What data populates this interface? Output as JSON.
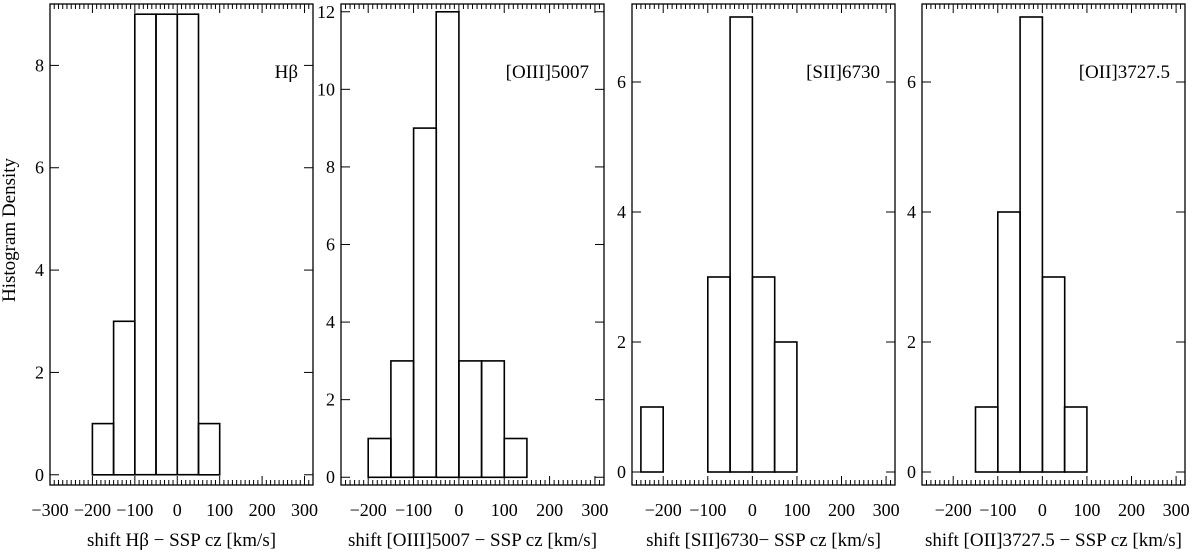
{
  "figure": {
    "ylabel": "Histogram Density"
  },
  "chart_data": [
    {
      "type": "bar",
      "annotation": "Hβ",
      "xlabel": "shift Hβ − SSP cz [km/s]",
      "xlim": [
        -300,
        320
      ],
      "xticks": [
        -300,
        -200,
        -100,
        0,
        100,
        200,
        300
      ],
      "xtick_labels": [
        "−300",
        "−200",
        "−100",
        "0",
        "100",
        "200",
        "300"
      ],
      "ylim": [
        -0.2,
        9.2
      ],
      "yticks": [
        0,
        2,
        4,
        6,
        8
      ],
      "bins": [
        {
          "x0": -200,
          "x1": -150,
          "value": 1
        },
        {
          "x0": -150,
          "x1": -100,
          "value": 3
        },
        {
          "x0": -100,
          "x1": -50,
          "value": 9
        },
        {
          "x0": -50,
          "x1": 0,
          "value": 9
        },
        {
          "x0": 0,
          "x1": 50,
          "value": 9
        },
        {
          "x0": 50,
          "x1": 100,
          "value": 1
        }
      ]
    },
    {
      "type": "bar",
      "annotation": "[OIII]5007",
      "xlabel": "shift [OIII]5007 − SSP cz [km/s]",
      "xlim": [
        -260,
        320
      ],
      "xticks": [
        -200,
        -100,
        0,
        100,
        200,
        300
      ],
      "xtick_labels": [
        "−200",
        "−100",
        "0",
        "100",
        "200",
        "300"
      ],
      "ylim": [
        -0.2,
        12.2
      ],
      "yticks": [
        0,
        2,
        4,
        6,
        8,
        10,
        12
      ],
      "bins": [
        {
          "x0": -200,
          "x1": -150,
          "value": 1
        },
        {
          "x0": -150,
          "x1": -100,
          "value": 3
        },
        {
          "x0": -100,
          "x1": -50,
          "value": 9
        },
        {
          "x0": -50,
          "x1": 0,
          "value": 12
        },
        {
          "x0": 0,
          "x1": 50,
          "value": 3
        },
        {
          "x0": 50,
          "x1": 100,
          "value": 3
        },
        {
          "x0": 100,
          "x1": 150,
          "value": 1
        }
      ]
    },
    {
      "type": "bar",
      "annotation": "[SII]6730",
      "xlabel": "shift [SII]6730− SSP cz [km/s]",
      "xlim": [
        -270,
        320
      ],
      "xticks": [
        -200,
        -100,
        0,
        100,
        200,
        300
      ],
      "xtick_labels": [
        "−200",
        "−100",
        "0",
        "100",
        "200",
        "300"
      ],
      "ylim": [
        -0.2,
        7.2
      ],
      "yticks": [
        0,
        2,
        4,
        6
      ],
      "bins": [
        {
          "x0": -250,
          "x1": -200,
          "value": 1
        },
        {
          "x0": -100,
          "x1": -50,
          "value": 3
        },
        {
          "x0": -50,
          "x1": 0,
          "value": 7
        },
        {
          "x0": 0,
          "x1": 50,
          "value": 3
        },
        {
          "x0": 50,
          "x1": 100,
          "value": 2
        }
      ]
    },
    {
      "type": "bar",
      "annotation": "[OII]3727.5",
      "xlabel": "shift [OII]3727.5 − SSP cz [km/s]",
      "xlim": [
        -270,
        320
      ],
      "xticks": [
        -200,
        -100,
        0,
        100,
        200,
        300
      ],
      "xtick_labels": [
        "−200",
        "−100",
        "0",
        "100",
        "200",
        "300"
      ],
      "ylim": [
        -0.2,
        7.2
      ],
      "yticks": [
        0,
        2,
        4,
        6
      ],
      "bins": [
        {
          "x0": -150,
          "x1": -100,
          "value": 1
        },
        {
          "x0": -100,
          "x1": -50,
          "value": 4
        },
        {
          "x0": -50,
          "x1": 0,
          "value": 7
        },
        {
          "x0": 0,
          "x1": 50,
          "value": 3
        },
        {
          "x0": 50,
          "x1": 100,
          "value": 1
        }
      ]
    }
  ]
}
